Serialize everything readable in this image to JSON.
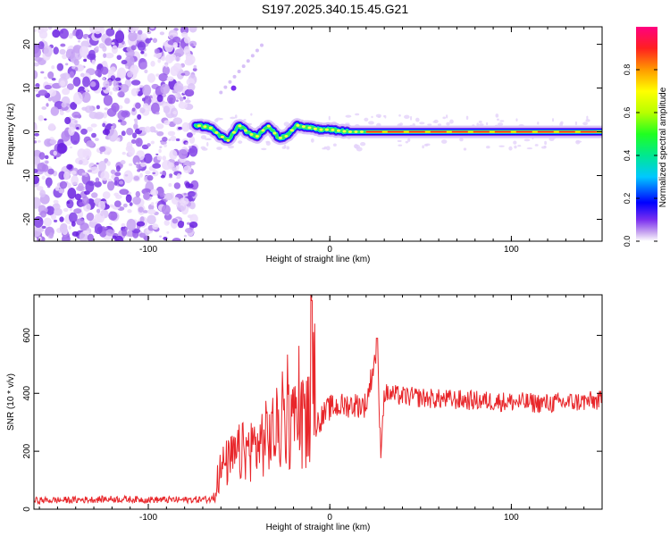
{
  "title": "S197.2025.340.15.45.G21",
  "chart_data": [
    {
      "type": "heatmap",
      "xlabel": "Height of straight line (km)",
      "ylabel": "Frequency (Hz)",
      "xlim": [
        -163,
        150
      ],
      "ylim": [
        -25,
        24
      ],
      "xticks": [
        -100,
        0,
        100
      ],
      "yticks": [
        -20,
        -10,
        0,
        10,
        20
      ],
      "noise_region_x": [
        -163,
        -74
      ],
      "ridge": {
        "description_points": [
          [
            -74,
            1.5
          ],
          [
            -66,
            1.0
          ],
          [
            -60,
            -1.0
          ],
          [
            -56,
            -2.0
          ],
          [
            -50,
            1.5
          ],
          [
            -44,
            -0.5
          ],
          [
            -40,
            -1.0
          ],
          [
            -34,
            1.5
          ],
          [
            -28,
            -1.5
          ],
          [
            -24,
            -1.0
          ],
          [
            -18,
            1.5
          ],
          [
            -12,
            1.0
          ],
          [
            -6,
            0.5
          ],
          [
            0,
            0.5
          ],
          [
            10,
            0.0
          ],
          [
            20,
            0.0
          ],
          [
            40,
            0.0
          ],
          [
            60,
            0.0
          ],
          [
            80,
            0.0
          ],
          [
            100,
            0.0
          ],
          [
            120,
            0.0
          ],
          [
            150,
            0.0
          ]
        ]
      },
      "colorbar": {
        "label": "Normalized spectral amplitude",
        "range": [
          0,
          1
        ],
        "ticks": [
          "0.0",
          "0.2",
          "0.4",
          "0.6",
          "0.8"
        ]
      }
    },
    {
      "type": "line",
      "xlabel": "Height of straight line (km)",
      "ylabel": "SNR (10 * v/v)",
      "xlim": [
        -163,
        150
      ],
      "ylim": [
        0,
        740
      ],
      "xticks": [
        -100,
        0,
        100
      ],
      "yticks": [
        0,
        200,
        400,
        600
      ],
      "series": [
        {
          "name": "SNR",
          "color": "#e8262a",
          "envelope_points": [
            [
              -163,
              30
            ],
            [
              -140,
              32
            ],
            [
              -120,
              35
            ],
            [
              -100,
              33
            ],
            [
              -80,
              32
            ],
            [
              -64,
              35
            ],
            [
              -60,
              140
            ],
            [
              -50,
              190
            ],
            [
              -40,
              220
            ],
            [
              -30,
              270
            ],
            [
              -20,
              300
            ],
            [
              -11,
              310
            ],
            [
              -10,
              720
            ],
            [
              -8,
              290
            ],
            [
              0,
              350
            ],
            [
              10,
              360
            ],
            [
              20,
              360
            ],
            [
              26,
              560
            ],
            [
              28,
              200
            ],
            [
              30,
              400
            ],
            [
              40,
              390
            ],
            [
              60,
              380
            ],
            [
              80,
              375
            ],
            [
              100,
              370
            ],
            [
              120,
              365
            ],
            [
              150,
              375
            ]
          ]
        }
      ]
    }
  ]
}
